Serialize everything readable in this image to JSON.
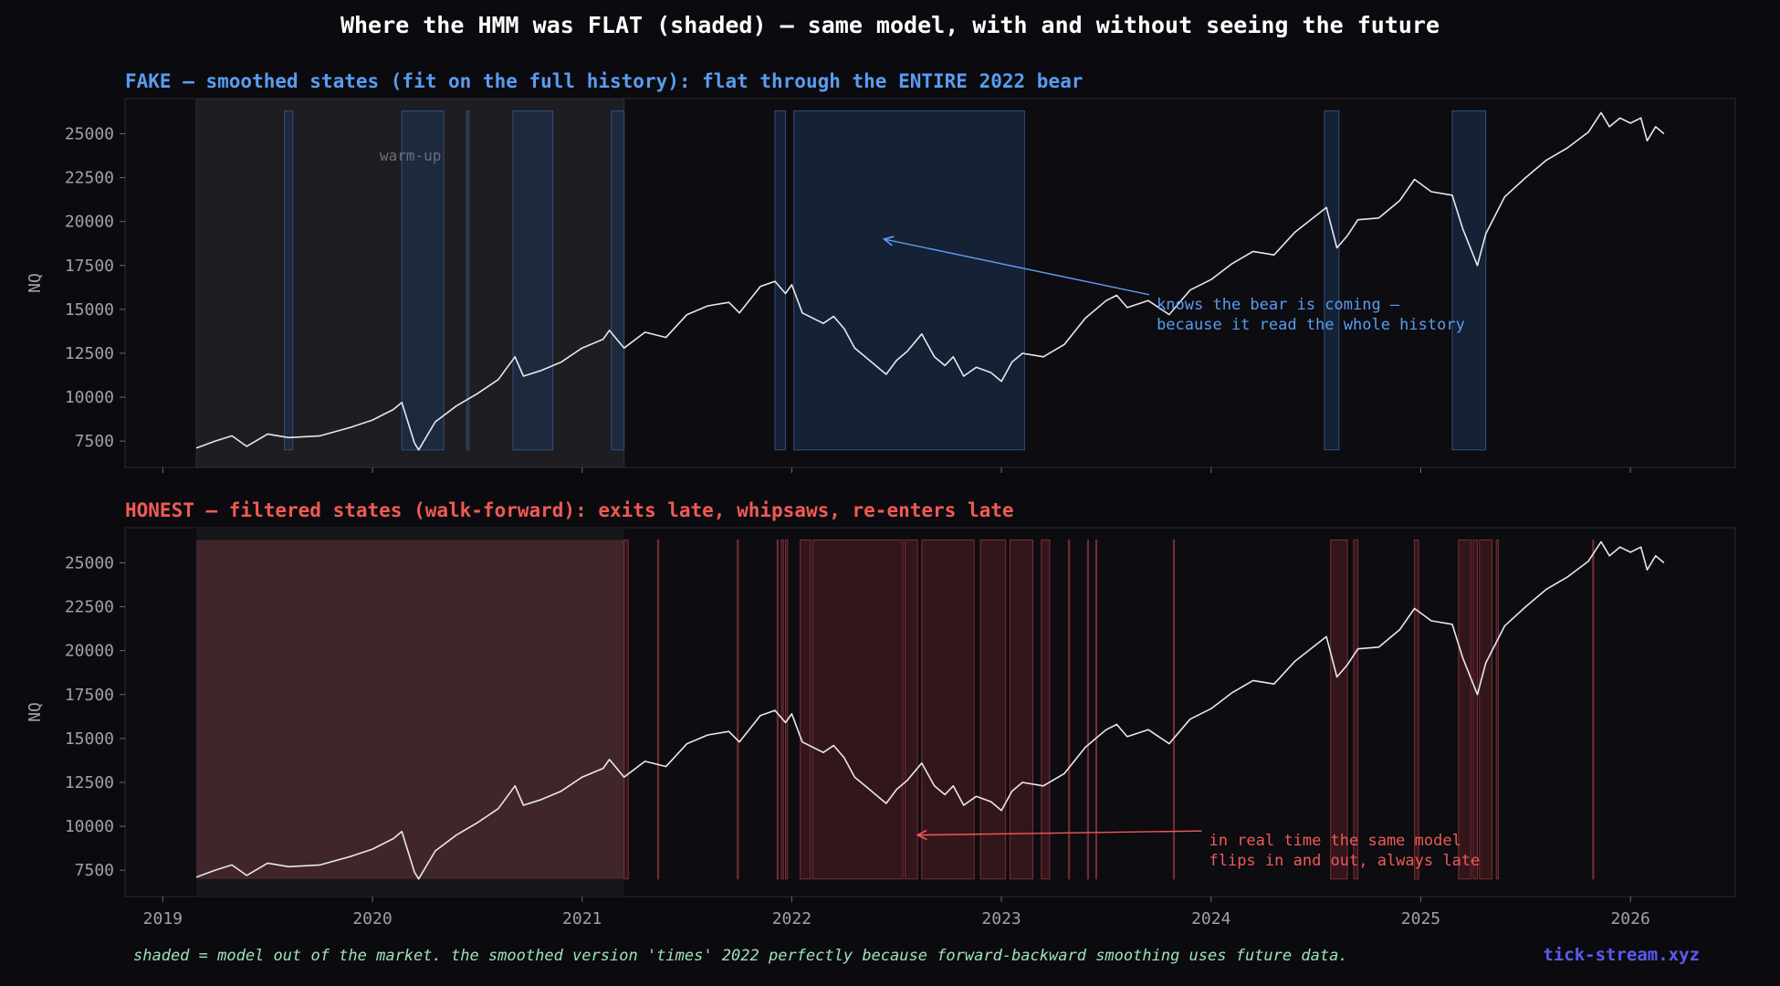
{
  "title": "Where the HMM was FLAT (shaded) — same model, with and without seeing the future",
  "footer": {
    "note": "shaded = model out of the market. the smoothed version 'times' 2022 perfectly because forward-backward smoothing uses future data.",
    "brand": "tick-stream.xyz"
  },
  "colors": {
    "background": "#0b0b0f",
    "panel": "#0c0c11",
    "price_line": "#e8e8ec",
    "fake_accent": "#5b9cf0",
    "honest_accent": "#f05a55",
    "footer_note": "#9fe0b9",
    "brand": "#5b5bf0",
    "tick_text": "#a0a0a8"
  },
  "chart_data": [
    {
      "type": "line",
      "title": "FAKE — smoothed states (fit on the full history): flat through the ENTIRE 2022 bear",
      "ylabel": "NQ",
      "xlim": [
        2018.82,
        2026.5
      ],
      "ylim": [
        6000,
        27000
      ],
      "yticks": [
        7500,
        10000,
        12500,
        15000,
        17500,
        20000,
        22500,
        25000
      ],
      "ytick_labels": [
        "7500",
        "10000",
        "12500",
        "15000",
        "17500",
        "20000",
        "22500",
        "25000"
      ],
      "xticks": [
        2019,
        2020,
        2021,
        2022,
        2023,
        2024,
        2025,
        2026
      ],
      "grid": false,
      "warmup": {
        "start": 2019.16,
        "end": 2021.2,
        "label": "warm-up"
      },
      "flat_periods": [
        [
          2019.58,
          2019.62
        ],
        [
          2020.14,
          2020.34
        ],
        [
          2020.45,
          2020.46
        ],
        [
          2020.67,
          2020.86
        ],
        [
          2021.14,
          2021.2
        ],
        [
          2021.92,
          2021.97
        ],
        [
          2022.01,
          2023.11
        ],
        [
          2024.54,
          2024.61
        ],
        [
          2025.15,
          2025.31
        ]
      ],
      "annotation": {
        "text": [
          "knows the bear is coming —",
          "because it read the whole history"
        ],
        "points_to": [
          2022.44,
          19000
        ],
        "text_at": [
          2023.74,
          15000
        ]
      }
    },
    {
      "type": "line",
      "title": "HONEST — filtered states (walk-forward): exits late, whipsaws, re-enters late",
      "ylabel": "NQ",
      "xlim": [
        2018.82,
        2026.5
      ],
      "ylim": [
        6000,
        27000
      ],
      "yticks": [
        7500,
        10000,
        12500,
        15000,
        17500,
        20000,
        22500,
        25000
      ],
      "ytick_labels": [
        "7500",
        "10000",
        "12500",
        "15000",
        "17500",
        "20000",
        "22500",
        "25000"
      ],
      "xticks": [
        2019,
        2020,
        2021,
        2022,
        2023,
        2024,
        2025,
        2026
      ],
      "xtick_labels": [
        "2019",
        "2020",
        "2021",
        "2022",
        "2023",
        "2024",
        "2025",
        "2026"
      ],
      "grid": false,
      "warmup": {
        "start": 2019.16,
        "end": 2021.2
      },
      "flat_periods": [
        [
          2021.2,
          2021.22
        ],
        [
          2021.36,
          2021.365
        ],
        [
          2021.74,
          2021.745
        ],
        [
          2021.93,
          2021.935
        ],
        [
          2021.95,
          2021.96
        ],
        [
          2021.97,
          2021.98
        ],
        [
          2022.04,
          2022.09
        ],
        [
          2022.1,
          2022.53
        ],
        [
          2022.54,
          2022.6
        ],
        [
          2022.62,
          2022.87
        ],
        [
          2022.9,
          2023.02
        ],
        [
          2023.04,
          2023.15
        ],
        [
          2023.19,
          2023.23
        ],
        [
          2023.32,
          2023.325
        ],
        [
          2023.41,
          2023.415
        ],
        [
          2023.45,
          2023.455
        ],
        [
          2023.82,
          2023.825
        ],
        [
          2024.57,
          2024.65
        ],
        [
          2024.68,
          2024.7
        ],
        [
          2024.97,
          2024.99
        ],
        [
          2025.18,
          2025.24
        ],
        [
          2025.25,
          2025.27
        ],
        [
          2025.28,
          2025.34
        ],
        [
          2025.36,
          2025.37
        ],
        [
          2025.82,
          2025.825
        ]
      ],
      "annotation": {
        "text": [
          "in real time the same model",
          "flips in and out, always late"
        ],
        "points_to": [
          2022.6,
          9500
        ],
        "text_at": [
          2023.99,
          8900
        ]
      }
    }
  ],
  "price_series": {
    "name": "NQ",
    "points": [
      [
        2019.16,
        7100
      ],
      [
        2019.25,
        7500
      ],
      [
        2019.33,
        7800
      ],
      [
        2019.4,
        7200
      ],
      [
        2019.5,
        7900
      ],
      [
        2019.6,
        7700
      ],
      [
        2019.75,
        7800
      ],
      [
        2019.9,
        8300
      ],
      [
        2020.0,
        8700
      ],
      [
        2020.1,
        9300
      ],
      [
        2020.14,
        9700
      ],
      [
        2020.2,
        7400
      ],
      [
        2020.22,
        7000
      ],
      [
        2020.3,
        8600
      ],
      [
        2020.4,
        9500
      ],
      [
        2020.5,
        10200
      ],
      [
        2020.6,
        11000
      ],
      [
        2020.68,
        12300
      ],
      [
        2020.72,
        11200
      ],
      [
        2020.8,
        11500
      ],
      [
        2020.9,
        12000
      ],
      [
        2021.0,
        12800
      ],
      [
        2021.1,
        13300
      ],
      [
        2021.13,
        13800
      ],
      [
        2021.2,
        12800
      ],
      [
        2021.3,
        13700
      ],
      [
        2021.4,
        13400
      ],
      [
        2021.5,
        14700
      ],
      [
        2021.6,
        15200
      ],
      [
        2021.7,
        15400
      ],
      [
        2021.75,
        14800
      ],
      [
        2021.85,
        16300
      ],
      [
        2021.92,
        16600
      ],
      [
        2021.97,
        15900
      ],
      [
        2022.0,
        16400
      ],
      [
        2022.05,
        14800
      ],
      [
        2022.15,
        14200
      ],
      [
        2022.2,
        14600
      ],
      [
        2022.25,
        13900
      ],
      [
        2022.3,
        12800
      ],
      [
        2022.35,
        12300
      ],
      [
        2022.4,
        11800
      ],
      [
        2022.45,
        11300
      ],
      [
        2022.5,
        12100
      ],
      [
        2022.55,
        12600
      ],
      [
        2022.62,
        13600
      ],
      [
        2022.68,
        12300
      ],
      [
        2022.73,
        11800
      ],
      [
        2022.77,
        12300
      ],
      [
        2022.82,
        11200
      ],
      [
        2022.88,
        11700
      ],
      [
        2022.95,
        11400
      ],
      [
        2023.0,
        10900
      ],
      [
        2023.05,
        12000
      ],
      [
        2023.1,
        12500
      ],
      [
        2023.2,
        12300
      ],
      [
        2023.3,
        13000
      ],
      [
        2023.4,
        14500
      ],
      [
        2023.5,
        15500
      ],
      [
        2023.55,
        15800
      ],
      [
        2023.6,
        15100
      ],
      [
        2023.7,
        15500
      ],
      [
        2023.8,
        14700
      ],
      [
        2023.9,
        16100
      ],
      [
        2024.0,
        16700
      ],
      [
        2024.1,
        17600
      ],
      [
        2024.2,
        18300
      ],
      [
        2024.3,
        18100
      ],
      [
        2024.4,
        19400
      ],
      [
        2024.55,
        20800
      ],
      [
        2024.6,
        18500
      ],
      [
        2024.65,
        19200
      ],
      [
        2024.7,
        20100
      ],
      [
        2024.8,
        20200
      ],
      [
        2024.9,
        21200
      ],
      [
        2024.97,
        22400
      ],
      [
        2025.05,
        21700
      ],
      [
        2025.15,
        21500
      ],
      [
        2025.2,
        19600
      ],
      [
        2025.27,
        17500
      ],
      [
        2025.31,
        19300
      ],
      [
        2025.4,
        21400
      ],
      [
        2025.5,
        22500
      ],
      [
        2025.6,
        23500
      ],
      [
        2025.7,
        24200
      ],
      [
        2025.8,
        25100
      ],
      [
        2025.86,
        26200
      ],
      [
        2025.9,
        25400
      ],
      [
        2025.95,
        25900
      ],
      [
        2026.0,
        25600
      ],
      [
        2026.05,
        25900
      ],
      [
        2026.08,
        24600
      ],
      [
        2026.12,
        25400
      ],
      [
        2026.16,
        25000
      ]
    ]
  }
}
